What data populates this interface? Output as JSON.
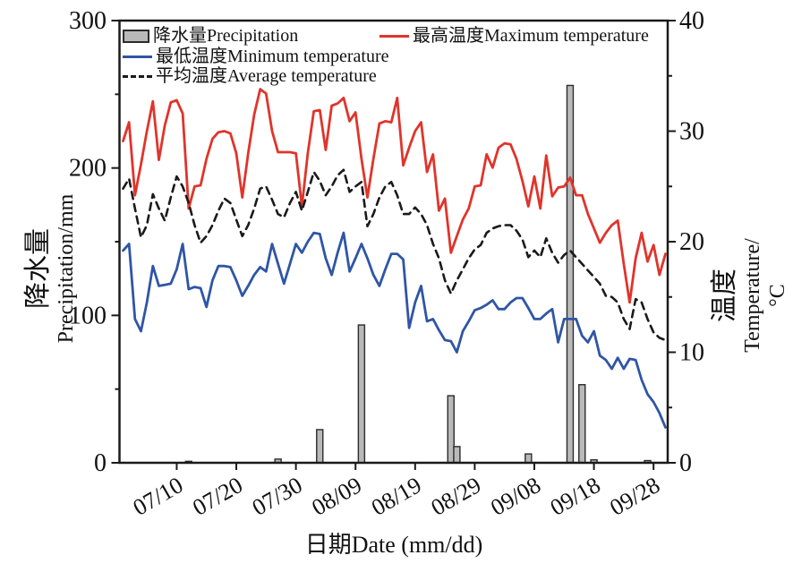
{
  "figure": {
    "background": "#ffffff",
    "text_color": "#111111",
    "axis_color": "#1a1a1a"
  },
  "legend": {
    "items": [
      {
        "label": "降水量Precipitation",
        "swatch": "gray-bar"
      },
      {
        "label": "最高温度Maximum temperature",
        "swatch": "red-line"
      },
      {
        "label": "最低温度Minimum temperature",
        "swatch": "blue-line"
      },
      {
        "label": "平均温度Average temperature",
        "swatch": "black-dashed-line"
      }
    ]
  },
  "chart_data": {
    "type": "bar+line combo",
    "x_axis": {
      "label": "日期Date (mm/dd)",
      "tick_labels": [
        "07/10",
        "07/20",
        "07/30",
        "08/09",
        "08/19",
        "08/29",
        "09/08",
        "09/18",
        "09/28"
      ],
      "tick_day_indices": [
        9,
        19,
        29,
        39,
        49,
        59,
        69,
        79,
        89
      ]
    },
    "left_axis": {
      "label_cn": "降水量",
      "label_en": "Precipitation/mm",
      "range": [
        0,
        300
      ],
      "ticks": [
        0,
        100,
        200,
        300
      ],
      "minor_ticks": [
        50,
        150,
        250
      ]
    },
    "right_axis": {
      "label_cn": "温度",
      "label_en": "Temperature/°C",
      "range": [
        0,
        40
      ],
      "ticks": [
        0,
        10,
        20,
        30,
        40
      ],
      "minor_ticks": [
        5,
        15,
        25,
        35
      ]
    },
    "x_dates": [
      "07/01",
      "07/02",
      "07/03",
      "07/04",
      "07/05",
      "07/06",
      "07/07",
      "07/08",
      "07/09",
      "07/10",
      "07/11",
      "07/12",
      "07/13",
      "07/14",
      "07/15",
      "07/16",
      "07/17",
      "07/18",
      "07/19",
      "07/20",
      "07/21",
      "07/22",
      "07/23",
      "07/24",
      "07/25",
      "07/26",
      "07/27",
      "07/28",
      "07/29",
      "07/30",
      "07/31",
      "08/01",
      "08/02",
      "08/03",
      "08/04",
      "08/05",
      "08/06",
      "08/07",
      "08/08",
      "08/09",
      "08/10",
      "08/11",
      "08/12",
      "08/13",
      "08/14",
      "08/15",
      "08/16",
      "08/17",
      "08/18",
      "08/19",
      "08/20",
      "08/21",
      "08/22",
      "08/23",
      "08/24",
      "08/25",
      "08/26",
      "08/27",
      "08/28",
      "08/29",
      "08/30",
      "08/31",
      "09/01",
      "09/02",
      "09/03",
      "09/04",
      "09/05",
      "09/06",
      "09/07",
      "09/08",
      "09/09",
      "09/10",
      "09/11",
      "09/12",
      "09/13",
      "09/14",
      "09/15",
      "09/16",
      "09/17",
      "09/18",
      "09/19",
      "09/20",
      "09/21",
      "09/22",
      "09/23",
      "09/24",
      "09/25",
      "09/26",
      "09/27",
      "09/28",
      "09/29",
      "09/30"
    ],
    "series": [
      {
        "name": "降水量Precipitation",
        "type": "bar",
        "axis": "left",
        "fill": "#b9b9b9",
        "stroke": "#2b2b2b",
        "values": [
          0,
          0,
          0,
          0,
          0,
          0,
          0,
          0,
          0,
          0,
          0,
          1,
          0,
          0,
          0,
          0,
          0,
          0,
          0,
          0,
          0,
          0,
          0,
          0,
          0,
          0,
          2.5,
          0,
          0,
          0,
          0,
          0,
          0,
          22.5,
          0,
          0,
          0,
          0,
          0,
          0,
          93.5,
          0,
          0,
          0,
          0,
          0,
          0,
          0,
          0,
          0,
          0,
          0,
          0,
          0,
          0,
          45.5,
          11,
          0,
          0,
          0,
          0,
          0,
          0,
          0,
          0,
          0,
          0,
          0,
          6,
          0,
          0,
          0,
          0,
          0,
          0,
          256,
          0,
          53,
          0,
          2,
          0,
          0,
          0,
          0,
          0,
          0,
          0,
          0,
          1.5,
          0,
          0,
          0
        ]
      },
      {
        "name": "最高温度Maximum temperature",
        "type": "line",
        "axis": "right",
        "color": "#e0342b",
        "values": [
          29.1,
          30.8,
          24.2,
          27,
          30,
          32.7,
          27.4,
          30.5,
          32.6,
          32.8,
          31.6,
          23,
          25,
          25.1,
          27.5,
          29.3,
          29.9,
          30,
          29.8,
          28,
          24,
          28,
          31.5,
          33.8,
          33.4,
          30,
          28.1,
          28.1,
          28.1,
          28,
          23.2,
          28,
          31.8,
          31.9,
          28.3,
          32.3,
          32.5,
          33,
          30.9,
          31.7,
          27.5,
          24,
          27.5,
          30.7,
          30.9,
          30.8,
          33,
          26.9,
          28.5,
          30,
          30.8,
          26.3,
          27.9,
          22.8,
          23.9,
          19,
          20.5,
          22,
          23,
          25,
          25.1,
          27.9,
          26.7,
          28.5,
          28.9,
          28.8,
          27.5,
          25.5,
          23.2,
          25.9,
          23,
          27.8,
          24.1,
          24.9,
          25,
          25.8,
          24.2,
          24.2,
          22.5,
          21.2,
          19.9,
          20.8,
          21.5,
          21.9,
          18,
          14.5,
          18.5,
          20.8,
          18.2,
          19.7,
          17,
          18.9
        ]
      },
      {
        "name": "最低温度Minimum temperature",
        "type": "line",
        "axis": "right",
        "color": "#2f55a5",
        "values": [
          19.2,
          19.8,
          13,
          11.9,
          14.5,
          17.8,
          16,
          16.1,
          16.2,
          17.5,
          19.8,
          15.7,
          15.9,
          15.8,
          14.1,
          16.5,
          17.8,
          17.8,
          17.7,
          16.5,
          15.1,
          16,
          17,
          17.7,
          17.3,
          19.8,
          18,
          16.2,
          18,
          19.8,
          19,
          20,
          20.8,
          20.7,
          18.5,
          17,
          19,
          20.8,
          17.3,
          18.5,
          19.8,
          18.5,
          17,
          16,
          17.5,
          18.9,
          18.9,
          18.4,
          12.2,
          14.5,
          16,
          12.8,
          13,
          12,
          11.1,
          11,
          10,
          11.9,
          12.8,
          13.8,
          14,
          14.3,
          14.7,
          13.9,
          13.9,
          14.5,
          14.9,
          14.9,
          14,
          13,
          13,
          13.5,
          13.9,
          10.9,
          13,
          13,
          13,
          11.5,
          10.9,
          11.9,
          9.7,
          9.3,
          8.5,
          9.5,
          8.5,
          9.4,
          9.3,
          7.5,
          6.2,
          5.5,
          4.5,
          3.2
        ]
      },
      {
        "name": "平均温度Average temperature",
        "type": "line",
        "dashed": true,
        "axis": "right",
        "color": "#1a1a1a",
        "values": [
          24.8,
          25.7,
          23,
          20.4,
          21.5,
          24.3,
          23,
          21.9,
          24,
          25.9,
          25,
          23.5,
          21.5,
          19.9,
          20.5,
          21.5,
          22.8,
          23.9,
          23.5,
          22,
          20.5,
          21.5,
          23,
          24.8,
          25,
          23.8,
          22.5,
          22.2,
          23.5,
          24.5,
          22.8,
          24.5,
          26.3,
          25.5,
          24.2,
          25,
          26,
          26.5,
          24.5,
          25,
          25.4,
          21.4,
          22.5,
          24,
          25,
          25.4,
          24.2,
          22.5,
          22.5,
          23.1,
          22.5,
          21.5,
          19.8,
          18.5,
          16.5,
          15.3,
          16.5,
          17.5,
          18.5,
          19.3,
          19.7,
          20.8,
          21.2,
          21.4,
          21.5,
          21.5,
          21,
          20.2,
          18.6,
          19.2,
          18.6,
          20.3,
          19,
          18.1,
          18.8,
          19.2,
          18.6,
          18,
          17.4,
          16.8,
          16.2,
          15.1,
          15,
          14.5,
          13,
          12.1,
          14.8,
          14.5,
          13,
          11.8,
          11.3,
          11.1
        ]
      }
    ]
  }
}
